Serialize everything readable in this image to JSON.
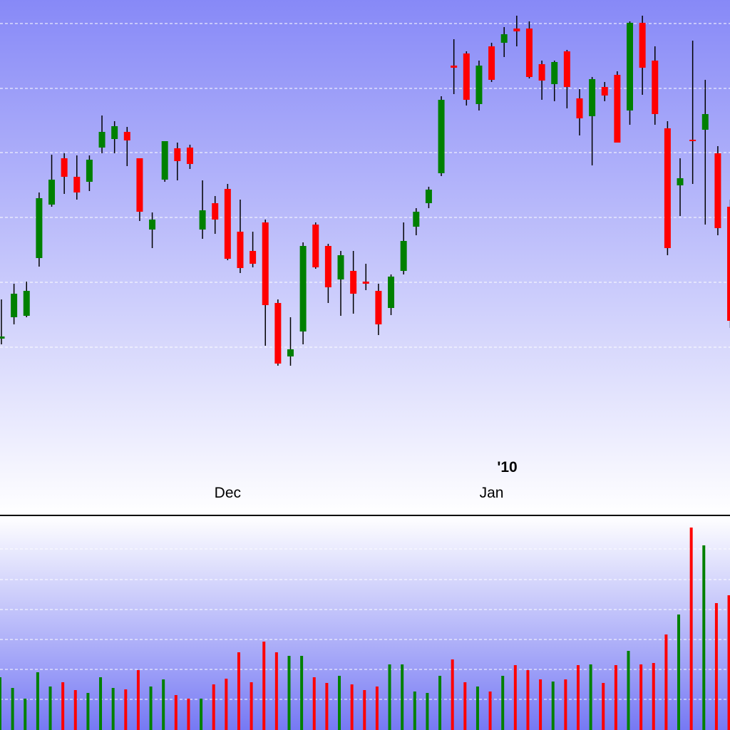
{
  "chart_data": {
    "type": "candlestick",
    "year_label": "'10",
    "categories": [
      null,
      null,
      null,
      null,
      null,
      null,
      null,
      null,
      null,
      null,
      null,
      null,
      null,
      null,
      null,
      null,
      null,
      null,
      "Dec",
      null,
      null,
      null,
      null,
      null,
      null,
      null,
      null,
      null,
      null,
      null,
      null,
      null,
      null,
      null,
      null,
      null,
      null,
      null,
      null,
      "Jan",
      null,
      null,
      null,
      null,
      null,
      null,
      null,
      null,
      null,
      null,
      null,
      null,
      null,
      null,
      null,
      null,
      null,
      null,
      null
    ],
    "open": [
      245,
      275,
      277,
      358,
      433,
      498,
      472,
      465,
      513,
      525,
      535,
      498,
      398,
      468,
      512,
      513,
      398,
      435,
      455,
      395,
      368,
      408,
      295,
      220,
      255,
      405,
      375,
      328,
      340,
      325,
      312,
      288,
      340,
      402,
      435,
      477,
      628,
      645,
      574,
      655,
      660,
      680,
      680,
      630,
      602,
      648,
      582,
      557,
      598,
      615,
      565,
      688,
      635,
      540,
      460,
      524,
      538,
      505,
      430
    ],
    "high": [
      300,
      322,
      325,
      450,
      503,
      505,
      502,
      502,
      558,
      550,
      542,
      498,
      422,
      522,
      520,
      517,
      467,
      445,
      462,
      440,
      395,
      412,
      300,
      275,
      380,
      408,
      378,
      368,
      368,
      350,
      322,
      335,
      408,
      428,
      458,
      585,
      665,
      648,
      635,
      660,
      682,
      698,
      690,
      635,
      635,
      650,
      595,
      612,
      605,
      620,
      690,
      698,
      655,
      550,
      498,
      663,
      608,
      515,
      440
    ],
    "low": [
      237,
      265,
      275,
      346,
      430,
      448,
      440,
      452,
      505,
      505,
      487,
      410,
      372,
      465,
      467,
      483,
      385,
      392,
      355,
      337,
      345,
      235,
      207,
      207,
      237,
      343,
      295,
      277,
      280,
      313,
      250,
      278,
      335,
      390,
      428,
      473,
      588,
      572,
      565,
      605,
      640,
      655,
      610,
      580,
      578,
      568,
      530,
      488,
      578,
      520,
      545,
      587,
      545,
      362,
      417,
      462,
      405,
      390,
      260
    ],
    "close": [
      248,
      308,
      312,
      442,
      468,
      472,
      450,
      496,
      535,
      543,
      523,
      423,
      412,
      522,
      494,
      490,
      425,
      412,
      357,
      344,
      350,
      292,
      210,
      230,
      375,
      345,
      317,
      362,
      308,
      322,
      265,
      332,
      382,
      423,
      454,
      580,
      625,
      580,
      628,
      608,
      672,
      676,
      612,
      607,
      633,
      598,
      554,
      609,
      586,
      520,
      688,
      625,
      560,
      372,
      470,
      523,
      560,
      400,
      270
    ],
    "volume": [
      74,
      59,
      44,
      81,
      61,
      67,
      56,
      52,
      74,
      59,
      57,
      84,
      61,
      71,
      49,
      44,
      44,
      64,
      72,
      109,
      67,
      124,
      109,
      104,
      104,
      74,
      66,
      76,
      64,
      56,
      61,
      92,
      92,
      54,
      52,
      76,
      99,
      67,
      61,
      54,
      76,
      91,
      84,
      71,
      68,
      71,
      91,
      92,
      66,
      91,
      111,
      92,
      94,
      134,
      162,
      284,
      259,
      178,
      189
    ],
    "up_color": "#008000",
    "down_color": "#ff0000",
    "ylim": [
      0,
      720
    ],
    "yticks": [
      233,
      324,
      415,
      506,
      596,
      687
    ],
    "volume_ylim": [
      0,
      300
    ],
    "volume_yticks": [
      43,
      85,
      127,
      169,
      211,
      254
    ],
    "grid": true
  }
}
